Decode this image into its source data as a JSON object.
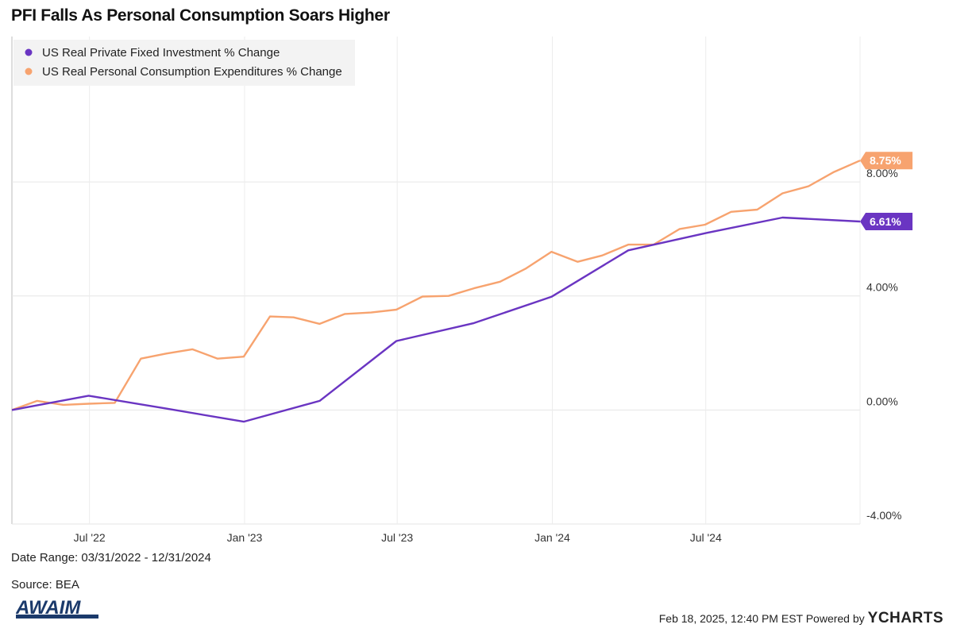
{
  "title": "PFI Falls As Personal Consumption Soars Higher",
  "date_range": "Date Range: 03/31/2022 - 12/31/2024",
  "source": "Source: BEA",
  "footer": {
    "timestamp": "Feb 18, 2025, 12:40 PM EST Powered by",
    "brand": "YCHARTS"
  },
  "logo_text": "AWAIM",
  "colors": {
    "pfi": "#6a35c2",
    "pce": "#f7a36f",
    "grid": "#e6e6e6",
    "axis": "#bbbbbb"
  },
  "chart_data": {
    "type": "line",
    "title": "PFI Falls As Personal Consumption Soars Higher",
    "x_ticks": [
      {
        "label": "Jul '22",
        "date": "2022-07-01"
      },
      {
        "label": "Jan '23",
        "date": "2023-01-01"
      },
      {
        "label": "Jul '23",
        "date": "2023-07-01"
      },
      {
        "label": "Jan '24",
        "date": "2024-01-01"
      },
      {
        "label": "Jul '24",
        "date": "2024-07-01"
      }
    ],
    "y_ticks": [
      {
        "label": "8.00%",
        "value": 8
      },
      {
        "label": "4.00%",
        "value": 4
      },
      {
        "label": "0.00%",
        "value": 0
      },
      {
        "label": "-4.00%",
        "value": -4
      }
    ],
    "xlim": [
      "2022-03-31",
      "2024-12-31"
    ],
    "ylim": [
      -4,
      13.1
    ],
    "grid": true,
    "legend_position": "top-left",
    "series": [
      {
        "name": "US Real Private Fixed Investment % Change",
        "color": "#6a35c2",
        "last_label": "6.61%",
        "points": [
          [
            "2022-03-31",
            0.0
          ],
          [
            "2022-06-30",
            0.5
          ],
          [
            "2022-09-30",
            0.05
          ],
          [
            "2022-12-31",
            -0.41
          ],
          [
            "2023-03-31",
            0.32
          ],
          [
            "2023-06-30",
            2.42
          ],
          [
            "2023-09-30",
            3.05
          ],
          [
            "2023-12-31",
            3.97
          ],
          [
            "2024-03-31",
            5.6
          ],
          [
            "2024-06-30",
            6.2
          ],
          [
            "2024-09-30",
            6.75
          ],
          [
            "2024-12-31",
            6.61
          ]
        ]
      },
      {
        "name": "US Real Personal Consumption Expenditures % Change",
        "color": "#f7a36f",
        "last_label": "8.75%",
        "points": [
          [
            "2022-03-31",
            0.0
          ],
          [
            "2022-04-30",
            0.32
          ],
          [
            "2022-05-31",
            0.18
          ],
          [
            "2022-06-30",
            0.22
          ],
          [
            "2022-07-31",
            0.25
          ],
          [
            "2022-08-31",
            1.8
          ],
          [
            "2022-09-30",
            1.98
          ],
          [
            "2022-10-31",
            2.13
          ],
          [
            "2022-11-30",
            1.8
          ],
          [
            "2022-12-31",
            1.87
          ],
          [
            "2023-01-31",
            3.28
          ],
          [
            "2023-02-28",
            3.25
          ],
          [
            "2023-03-31",
            3.02
          ],
          [
            "2023-04-30",
            3.37
          ],
          [
            "2023-05-31",
            3.42
          ],
          [
            "2023-06-30",
            3.52
          ],
          [
            "2023-07-31",
            3.98
          ],
          [
            "2023-08-31",
            4.0
          ],
          [
            "2023-09-30",
            4.27
          ],
          [
            "2023-10-31",
            4.5
          ],
          [
            "2023-11-30",
            4.95
          ],
          [
            "2023-12-31",
            5.55
          ],
          [
            "2024-01-31",
            5.2
          ],
          [
            "2024-02-29",
            5.42
          ],
          [
            "2024-03-31",
            5.8
          ],
          [
            "2024-04-30",
            5.8
          ],
          [
            "2024-05-31",
            6.35
          ],
          [
            "2024-06-30",
            6.5
          ],
          [
            "2024-07-31",
            6.95
          ],
          [
            "2024-08-31",
            7.03
          ],
          [
            "2024-09-30",
            7.6
          ],
          [
            "2024-10-31",
            7.85
          ],
          [
            "2024-11-30",
            8.35
          ],
          [
            "2024-12-31",
            8.75
          ]
        ]
      }
    ]
  }
}
